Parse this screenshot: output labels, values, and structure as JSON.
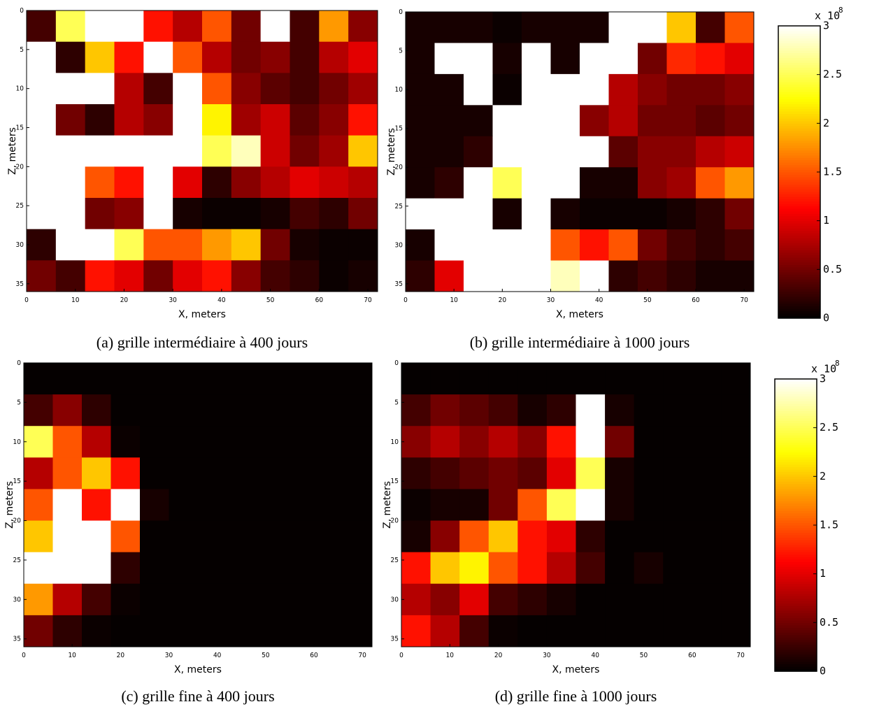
{
  "chart_data": [
    {
      "type": "heatmap",
      "title": "(a) grille intermédiaire à 400 jours",
      "xlabel": "X, meters",
      "ylabel": "Z, meters",
      "colormap": "hot",
      "zlim": [
        0,
        3
      ],
      "xlim": [
        0,
        72
      ],
      "ylim": [
        0,
        36
      ],
      "y_reversed": true,
      "xticks": [
        0,
        10,
        20,
        30,
        40,
        50,
        60,
        70
      ],
      "yticks": [
        0,
        5,
        10,
        15,
        20,
        25,
        30,
        35
      ],
      "x_edges": [
        0,
        6,
        12,
        18,
        24,
        30,
        36,
        42,
        48,
        54,
        60,
        66,
        72
      ],
      "y_edges": [
        0,
        4,
        8,
        12,
        16,
        20,
        24,
        28,
        32,
        36
      ],
      "values": [
        [
          0.3,
          2.5,
          3,
          3,
          1.2,
          0.8,
          1.5,
          0.5,
          3,
          0.3,
          1.8,
          0.6
        ],
        [
          3,
          0.2,
          2,
          1.2,
          3,
          1.5,
          0.8,
          0.5,
          0.6,
          0.3,
          0.8,
          1.0
        ],
        [
          3,
          3,
          3,
          0.8,
          0.3,
          3,
          1.5,
          0.6,
          0.4,
          0.3,
          0.5,
          0.7
        ],
        [
          3,
          0.5,
          0.2,
          0.8,
          0.6,
          3,
          2.2,
          0.7,
          0.9,
          0.4,
          0.6,
          1.2
        ],
        [
          3,
          3,
          3,
          3,
          3,
          3,
          2.5,
          2.8,
          0.9,
          0.5,
          0.7,
          2
        ],
        [
          3,
          3,
          1.5,
          1.2,
          3,
          1.0,
          0.2,
          0.6,
          0.8,
          1.0,
          0.9,
          0.8
        ],
        [
          3,
          3,
          0.5,
          0.6,
          3,
          0.1,
          0.05,
          0.05,
          0.1,
          0.3,
          0.2,
          0.5
        ],
        [
          0.2,
          3,
          3,
          2.5,
          1.5,
          1.5,
          1.8,
          2.0,
          0.5,
          0.1,
          0.05,
          0.05
        ],
        [
          0.5,
          0.3,
          1.2,
          1.0,
          0.5,
          1.0,
          1.2,
          0.6,
          0.3,
          0.2,
          0.05,
          0.1
        ]
      ]
    },
    {
      "type": "heatmap",
      "title": "(b) grille intermédiaire à 1000 jours",
      "xlabel": "X, meters",
      "ylabel": "Z, meters",
      "colormap": "hot",
      "zlim": [
        0,
        3
      ],
      "xlim": [
        0,
        72
      ],
      "ylim": [
        0,
        36
      ],
      "y_reversed": true,
      "xticks": [
        0,
        10,
        20,
        30,
        40,
        50,
        60,
        70
      ],
      "yticks": [
        0,
        5,
        10,
        15,
        20,
        25,
        30,
        35
      ],
      "x_edges": [
        0,
        6,
        12,
        18,
        24,
        30,
        36,
        42,
        48,
        54,
        60,
        66,
        72
      ],
      "y_edges": [
        0,
        4,
        8,
        12,
        16,
        20,
        24,
        28,
        32,
        36
      ],
      "values": [
        [
          0.1,
          0.1,
          0.1,
          0.05,
          0.1,
          0.1,
          0.1,
          3,
          3,
          2,
          0.3,
          1.5
        ],
        [
          0.1,
          3,
          3,
          0.1,
          3,
          0.1,
          3,
          3,
          0.5,
          1.3,
          1.2,
          1.0
        ],
        [
          0.1,
          0.1,
          3,
          0.05,
          3,
          3,
          3,
          0.8,
          0.6,
          0.5,
          0.5,
          0.6
        ],
        [
          0.1,
          0.1,
          0.1,
          3,
          3,
          3,
          0.6,
          0.8,
          0.5,
          0.5,
          0.4,
          0.5
        ],
        [
          0.1,
          0.1,
          0.2,
          3,
          3,
          3,
          3,
          0.4,
          0.6,
          0.6,
          0.8,
          0.9
        ],
        [
          0.1,
          0.2,
          3,
          2.5,
          3,
          3,
          0.1,
          0.1,
          0.6,
          0.7,
          1.5,
          1.8
        ],
        [
          3,
          3,
          3,
          0.1,
          3,
          0.1,
          0.05,
          0.05,
          0.05,
          0.1,
          0.2,
          0.5
        ],
        [
          0.1,
          3,
          3,
          3,
          3,
          1.5,
          1.2,
          1.5,
          0.5,
          0.3,
          0.2,
          0.3
        ],
        [
          0.2,
          1.0,
          3,
          3,
          3,
          2.8,
          3,
          0.2,
          0.3,
          0.2,
          0.1,
          0.1
        ]
      ],
      "colorbar": {
        "ticks": [
          0,
          0.5,
          1,
          1.5,
          2,
          2.5,
          3
        ],
        "multiplier": "x 10",
        "exponent": "8"
      }
    },
    {
      "type": "heatmap",
      "title": "(c) grille fine à 400 jours",
      "xlabel": "X, meters",
      "ylabel": "Z, meters",
      "colormap": "hot",
      "zlim": [
        0,
        3
      ],
      "xlim": [
        0,
        72
      ],
      "ylim": [
        0,
        36
      ],
      "y_reversed": true,
      "xticks": [
        0,
        10,
        20,
        30,
        40,
        50,
        60,
        70
      ],
      "yticks": [
        0,
        5,
        10,
        15,
        20,
        25,
        30,
        35
      ],
      "x_edges": [
        0,
        6,
        12,
        18,
        24,
        30,
        36,
        42,
        48,
        54,
        60,
        66,
        72
      ],
      "y_edges": [
        0,
        4,
        8,
        12,
        16,
        20,
        24,
        28,
        32,
        36
      ],
      "values": [
        [
          0.02,
          0.02,
          0.02,
          0.02,
          0.02,
          0.02,
          0.02,
          0.02,
          0.02,
          0.02,
          0.02,
          0.02
        ],
        [
          0.3,
          0.6,
          0.2,
          0.02,
          0.02,
          0.02,
          0.02,
          0.02,
          0.02,
          0.02,
          0.02,
          0.02
        ],
        [
          2.5,
          1.5,
          0.8,
          0.05,
          0.02,
          0.02,
          0.02,
          0.02,
          0.02,
          0.02,
          0.02,
          0.02
        ],
        [
          0.8,
          1.5,
          2.0,
          1.2,
          0.02,
          0.02,
          0.02,
          0.02,
          0.02,
          0.02,
          0.02,
          0.02
        ],
        [
          1.5,
          3,
          1.2,
          3,
          0.1,
          0.02,
          0.02,
          0.02,
          0.02,
          0.02,
          0.02,
          0.02
        ],
        [
          2,
          3,
          3,
          1.5,
          0.02,
          0.02,
          0.02,
          0.02,
          0.02,
          0.02,
          0.02,
          0.02
        ],
        [
          3,
          3,
          3,
          0.2,
          0.02,
          0.02,
          0.02,
          0.02,
          0.02,
          0.02,
          0.02,
          0.02
        ],
        [
          1.8,
          0.8,
          0.3,
          0.05,
          0.02,
          0.02,
          0.02,
          0.02,
          0.02,
          0.02,
          0.02,
          0.02
        ],
        [
          0.5,
          0.2,
          0.05,
          0.02,
          0.02,
          0.02,
          0.02,
          0.02,
          0.02,
          0.02,
          0.02,
          0.02
        ]
      ]
    },
    {
      "type": "heatmap",
      "title": "(d) grille fine à 1000 jours",
      "xlabel": "X, meters",
      "ylabel": "Z, meters",
      "colormap": "hot",
      "zlim": [
        0,
        3
      ],
      "xlim": [
        0,
        72
      ],
      "ylim": [
        0,
        36
      ],
      "y_reversed": true,
      "xticks": [
        0,
        10,
        20,
        30,
        40,
        50,
        60,
        70
      ],
      "yticks": [
        0,
        5,
        10,
        15,
        20,
        25,
        30,
        35
      ],
      "x_edges": [
        0,
        6,
        12,
        18,
        24,
        30,
        36,
        42,
        48,
        54,
        60,
        66,
        72
      ],
      "y_edges": [
        0,
        4,
        8,
        12,
        16,
        20,
        24,
        28,
        32,
        36
      ],
      "values": [
        [
          0.02,
          0.02,
          0.02,
          0.02,
          0.02,
          0.02,
          0.02,
          0.02,
          0.02,
          0.02,
          0.02,
          0.02
        ],
        [
          0.3,
          0.5,
          0.4,
          0.3,
          0.1,
          0.2,
          3,
          0.1,
          0.02,
          0.02,
          0.02,
          0.02
        ],
        [
          0.6,
          0.8,
          0.6,
          0.8,
          0.6,
          1.2,
          3,
          0.5,
          0.02,
          0.02,
          0.02,
          0.02
        ],
        [
          0.2,
          0.3,
          0.4,
          0.5,
          0.4,
          1.0,
          2.5,
          0.1,
          0.02,
          0.02,
          0.02,
          0.02
        ],
        [
          0.05,
          0.1,
          0.1,
          0.5,
          1.5,
          2.5,
          3,
          0.1,
          0.02,
          0.02,
          0.02,
          0.02
        ],
        [
          0.1,
          0.6,
          1.5,
          2.0,
          1.2,
          1.0,
          0.2,
          0.02,
          0.02,
          0.02,
          0.02,
          0.02
        ],
        [
          1.2,
          2.0,
          2.2,
          1.5,
          1.2,
          0.8,
          0.3,
          0.02,
          0.1,
          0.02,
          0.02,
          0.02
        ],
        [
          0.8,
          0.6,
          1.0,
          0.3,
          0.2,
          0.1,
          0.02,
          0.02,
          0.02,
          0.02,
          0.02,
          0.02
        ],
        [
          1.2,
          0.8,
          0.3,
          0.05,
          0.02,
          0.02,
          0.02,
          0.02,
          0.02,
          0.02,
          0.02,
          0.02
        ]
      ],
      "colorbar": {
        "ticks": [
          0,
          0.5,
          1,
          1.5,
          2,
          2.5,
          3
        ],
        "multiplier": "x 10",
        "exponent": "8"
      }
    }
  ]
}
